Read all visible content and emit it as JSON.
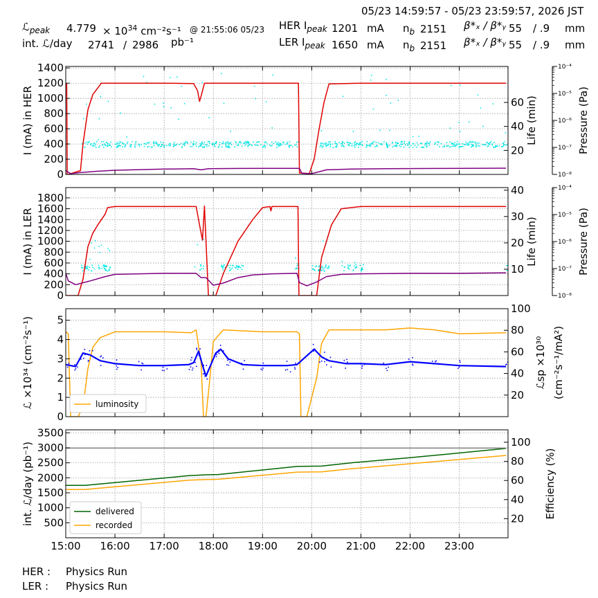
{
  "header": {
    "time_range": "05/23 14:59:57 - 05/23 23:59:57, 2026 JST",
    "lpeak_label": "ℒ",
    "lpeak_sub": "peak",
    "lpeak_value": "4.779",
    "lpeak_unit_pre": "× 10",
    "lpeak_exp": "34",
    "lpeak_unit": "cm⁻²s⁻¹",
    "lpeak_time": "@ 21:55:06 05/23",
    "intl_label": "int. ℒ/day",
    "intl_value": "2741",
    "intl_sep": "/",
    "intl_total": "2986",
    "intl_unit": "pb⁻¹",
    "her_label": "HER I",
    "her_sub": "peak",
    "her_value": "1201",
    "her_unit": "mA",
    "ler_label": "LER I",
    "ler_sub": "peak",
    "ler_value": "1650",
    "ler_unit": "mA",
    "nb_label": "n",
    "nb_sub": "b",
    "her_nb": "2151",
    "ler_nb": "2151",
    "beta_label": "β*ₓ / β*ᵧ",
    "her_beta_x": "55",
    "her_beta_y": "/ .9",
    "her_beta_unit": "mm",
    "ler_beta_x": "55",
    "ler_beta_y": "/ .9",
    "ler_beta_unit": "mm"
  },
  "footer": {
    "her_label": "HER :",
    "her_status": "Physics Run",
    "ler_label": "LER :",
    "ler_status": "Physics Run"
  },
  "chart_data": [
    {
      "type": "line",
      "ylabel": "I (mA) in HER",
      "ylabel_right": "Life (min)",
      "ylabel_pressure": "Pressure (Pa)",
      "x_ticks": [
        "15:00",
        "16:00",
        "17:00",
        "18:00",
        "19:00",
        "20:00",
        "21:00",
        "22:00",
        "23:00"
      ],
      "ylim": [
        0,
        1420
      ],
      "yticks": [
        0,
        200,
        400,
        600,
        800,
        1000,
        1200,
        1400
      ],
      "ylim_right": [
        0,
        90
      ],
      "yticks_right": [
        20,
        40,
        60
      ],
      "pressure_log_range": [
        "10⁻⁸",
        "10⁻⁷",
        "10⁻⁶",
        "10⁻⁵",
        "10⁻⁴"
      ],
      "series": [
        {
          "color": "#e00000",
          "x": [
            15.0,
            15.02,
            15.03,
            15.05,
            15.3,
            15.35,
            15.45,
            15.55,
            15.7,
            15.72,
            16.0,
            17.0,
            17.6,
            17.68,
            17.72,
            17.76,
            17.82,
            18.0,
            19.0,
            19.7,
            19.73,
            19.75,
            19.95,
            20.05,
            20.15,
            20.25,
            20.35,
            21.0,
            22.0,
            23.0,
            23.95
          ],
          "y": [
            1180,
            1190,
            0,
            0,
            50,
            400,
            850,
            1050,
            1180,
            1200,
            1200,
            1200,
            1195,
            1100,
            960,
            1050,
            1200,
            1200,
            1200,
            1200,
            1200,
            20,
            10,
            200,
            600,
            950,
            1190,
            1200,
            1200,
            1200,
            1200
          ]
        },
        {
          "color": "#800080",
          "x": [
            15.0,
            15.1,
            15.3,
            15.6,
            16.0,
            17.0,
            17.6,
            17.75,
            17.9,
            18.5,
            19.0,
            19.75,
            19.8,
            20.0,
            20.3,
            20.8,
            21.5,
            22.5,
            23.95
          ],
          "y": [
            50,
            10,
            25,
            40,
            55,
            70,
            75,
            60,
            75,
            78,
            80,
            80,
            15,
            10,
            60,
            70,
            75,
            78,
            82
          ]
        }
      ],
      "scatter": {
        "color": "#00e5e5",
        "band_center_y": 400,
        "band_spread": 40,
        "outlier_max_y": 1340
      }
    },
    {
      "type": "line",
      "ylabel": "I (mA) in LER",
      "ylabel_right": "Life (min)",
      "ylabel_pressure": "Pressure (Pa)",
      "ylim": [
        0,
        1990
      ],
      "yticks": [
        0,
        200,
        400,
        600,
        800,
        1000,
        1200,
        1400,
        1600,
        1800
      ],
      "ylim_right": [
        0,
        41
      ],
      "yticks_right": [
        10,
        20,
        30,
        40
      ],
      "pressure_log_range": [
        "10⁻⁸",
        "10⁻⁷",
        "10⁻⁶",
        "10⁻⁵",
        "10⁻⁴"
      ],
      "series": [
        {
          "color": "#e00000",
          "x": [
            15.0,
            15.25,
            15.35,
            15.45,
            15.55,
            15.65,
            15.8,
            15.85,
            16.0,
            17.0,
            17.65,
            17.72,
            17.78,
            17.82,
            17.9,
            18.05,
            18.2,
            18.5,
            18.8,
            19.0,
            19.15,
            19.17,
            19.19,
            19.7,
            19.72,
            19.74,
            19.95,
            20.1,
            20.2,
            20.4,
            20.6,
            21.0,
            22.0,
            23.0,
            23.95
          ],
          "y": [
            0,
            0,
            300,
            900,
            1150,
            1300,
            1500,
            1620,
            1640,
            1640,
            1640,
            1300,
            1020,
            1650,
            0,
            0,
            400,
            1000,
            1400,
            1620,
            1640,
            1560,
            1640,
            1640,
            1640,
            0,
            0,
            0,
            700,
            1300,
            1600,
            1640,
            1640,
            1640,
            1640
          ]
        },
        {
          "color": "#800080",
          "x": [
            15.0,
            15.05,
            15.2,
            15.5,
            15.8,
            16.0,
            16.5,
            17.0,
            17.65,
            17.75,
            17.85,
            18.0,
            18.2,
            18.5,
            18.8,
            19.2,
            19.7,
            19.75,
            19.9,
            20.1,
            20.3,
            20.6,
            21.0,
            22.0,
            23.0,
            23.95
          ],
          "y": [
            410,
            270,
            200,
            270,
            350,
            390,
            400,
            410,
            410,
            330,
            330,
            190,
            230,
            330,
            380,
            400,
            410,
            240,
            180,
            250,
            350,
            390,
            400,
            410,
            410,
            420
          ]
        }
      ],
      "scatter": {
        "color": "#00e5e5",
        "band_center_y": 520,
        "band_spread": 60,
        "outlier_max_y": 1090
      }
    },
    {
      "type": "line",
      "ylabel": "ℒ ×10³⁴ (cm⁻²s⁻¹)",
      "ylabel_right": "ℒsp ×10³⁰",
      "ylabel_right2": "(cm⁻²s⁻¹/mA²)",
      "ylim": [
        0,
        5.6
      ],
      "yticks": [
        0,
        1,
        2,
        3,
        4,
        5
      ],
      "ylim_right": [
        0,
        100
      ],
      "yticks_right": [
        20,
        40,
        60,
        80,
        100
      ],
      "legend": "luminosity",
      "legend_position": "lower-left",
      "series": [
        {
          "name": "luminosity",
          "color": "#ffa500",
          "x": [
            15.0,
            15.05,
            15.1,
            15.25,
            15.35,
            15.45,
            15.55,
            15.7,
            16.0,
            17.0,
            17.55,
            17.65,
            17.75,
            17.8,
            17.85,
            17.93,
            18.0,
            18.2,
            19.0,
            19.4,
            19.7,
            19.75,
            19.78,
            19.9,
            19.95,
            20.1,
            20.2,
            20.35,
            21.0,
            21.5,
            22.0,
            22.5,
            23.0,
            23.95
          ],
          "y": [
            4.4,
            4.3,
            0,
            0,
            0.5,
            2.5,
            3.6,
            4.1,
            4.4,
            4.4,
            4.35,
            4.5,
            2.8,
            0,
            0,
            2.0,
            3.9,
            4.5,
            4.4,
            4.4,
            4.4,
            4.3,
            0,
            0,
            0.5,
            2.0,
            3.8,
            4.5,
            4.5,
            4.5,
            4.6,
            4.5,
            4.3,
            4.35
          ]
        },
        {
          "name": "",
          "color": "#0000ff",
          "x": [
            15.0,
            15.2,
            15.35,
            15.5,
            15.7,
            16.0,
            16.5,
            17.0,
            17.5,
            17.6,
            17.7,
            17.8,
            17.85,
            18.05,
            18.15,
            18.3,
            18.6,
            19.0,
            19.5,
            19.7,
            20.05,
            20.2,
            20.35,
            20.7,
            21.0,
            21.5,
            22.0,
            22.5,
            23.0,
            23.95
          ],
          "y": [
            2.7,
            2.6,
            3.3,
            3.2,
            2.9,
            2.75,
            2.65,
            2.65,
            2.7,
            2.8,
            3.4,
            2.5,
            2.1,
            3.3,
            3.5,
            3.0,
            2.7,
            2.65,
            2.65,
            2.7,
            3.5,
            3.1,
            2.9,
            2.75,
            2.75,
            2.7,
            2.85,
            2.75,
            2.65,
            2.6
          ]
        }
      ]
    },
    {
      "type": "line",
      "ylabel": "int. ℒ/day (pb⁻¹)",
      "ylabel_right": "Efficiency (%)",
      "ylim": [
        0,
        3600
      ],
      "yticks": [
        500,
        1000,
        1500,
        2000,
        2500,
        3000,
        3500
      ],
      "ylim_right": [
        0,
        113
      ],
      "yticks_right": [
        20,
        40,
        60,
        80,
        100
      ],
      "legend_position": "lower-left",
      "series": [
        {
          "name": "delivered",
          "color": "#006400",
          "x": [
            15.0,
            15.4,
            15.6,
            17.5,
            17.85,
            18.1,
            19.7,
            20.2,
            20.8,
            22.0,
            23.95
          ],
          "y": [
            1750,
            1750,
            1780,
            2070,
            2100,
            2110,
            2380,
            2390,
            2500,
            2670,
            2980
          ]
        },
        {
          "name": "recorded",
          "color": "#ffa500",
          "x": [
            15.0,
            15.4,
            15.6,
            17.5,
            17.85,
            18.1,
            19.7,
            20.2,
            20.8,
            22.0,
            23.95
          ],
          "y": [
            1610,
            1610,
            1640,
            1920,
            1940,
            1950,
            2190,
            2200,
            2300,
            2470,
            2745
          ]
        },
        {
          "name": "",
          "color": "#808080",
          "x": [
            15.0,
            23.95
          ],
          "y": [
            2990,
            2990
          ]
        }
      ]
    }
  ]
}
